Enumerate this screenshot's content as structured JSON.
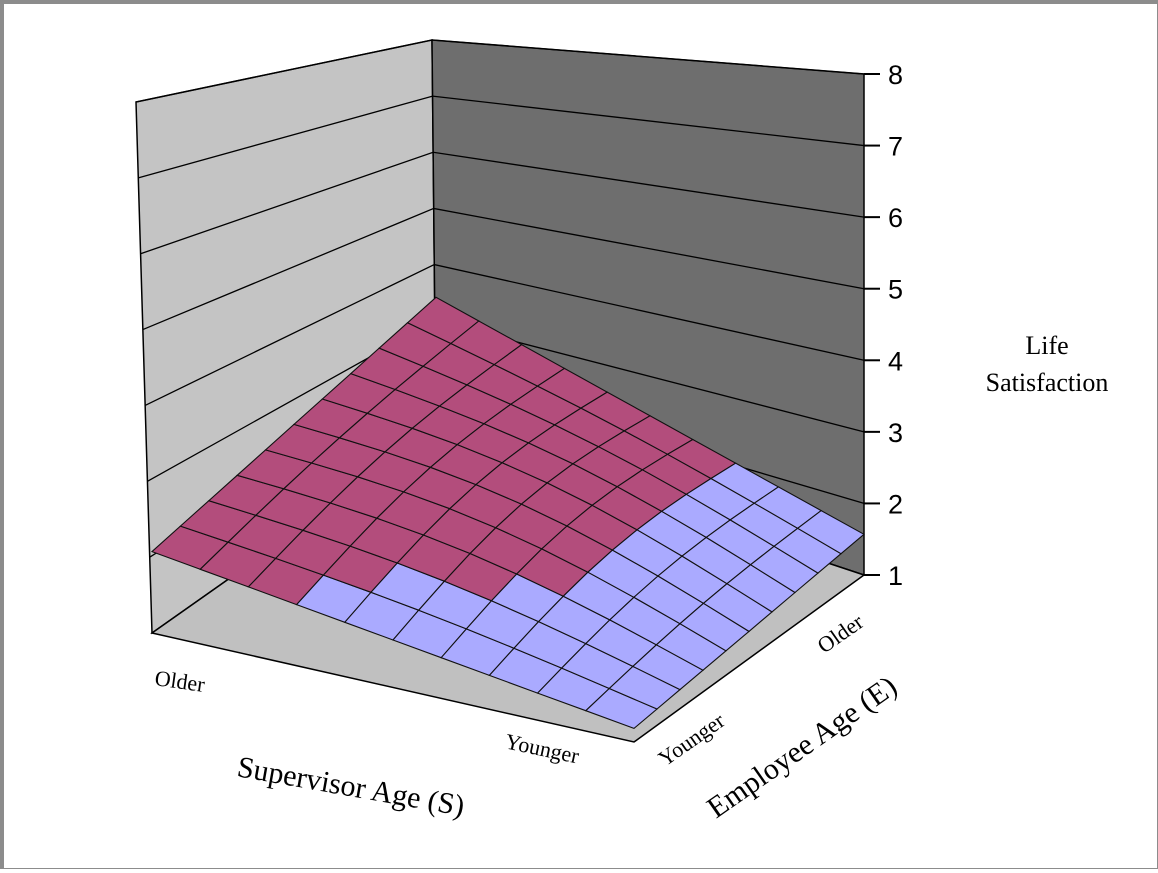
{
  "chart_data": {
    "type": "surface",
    "title": "",
    "zlabel_lines": [
      "Life",
      "Satisfaction"
    ],
    "zlim": [
      1,
      8
    ],
    "z_ticks": [
      "1",
      "2",
      "3",
      "4",
      "5",
      "6",
      "7",
      "8"
    ],
    "x_axis": {
      "label": "Supervisor Age (S)",
      "ticks": [
        "Older",
        "Younger"
      ]
    },
    "y_axis": {
      "label": "Employee Age (E)",
      "ticks": [
        "Younger",
        "Older"
      ]
    },
    "surface_corners": {
      "supervisor_older_employee_younger": 2.2,
      "supervisor_older_employee_older": 3.0,
      "supervisor_younger_employee_younger": 1.2,
      "supervisor_younger_employee_older": 1.6
    },
    "grid": true,
    "colors": {
      "surface_top": "#b34d7c",
      "surface_band_low": "#aaaaff",
      "back_wall": "#6e6e6e",
      "side_wall": "#c4c4c4",
      "floor": "#c0c0c0",
      "gridline": "#000000"
    }
  }
}
